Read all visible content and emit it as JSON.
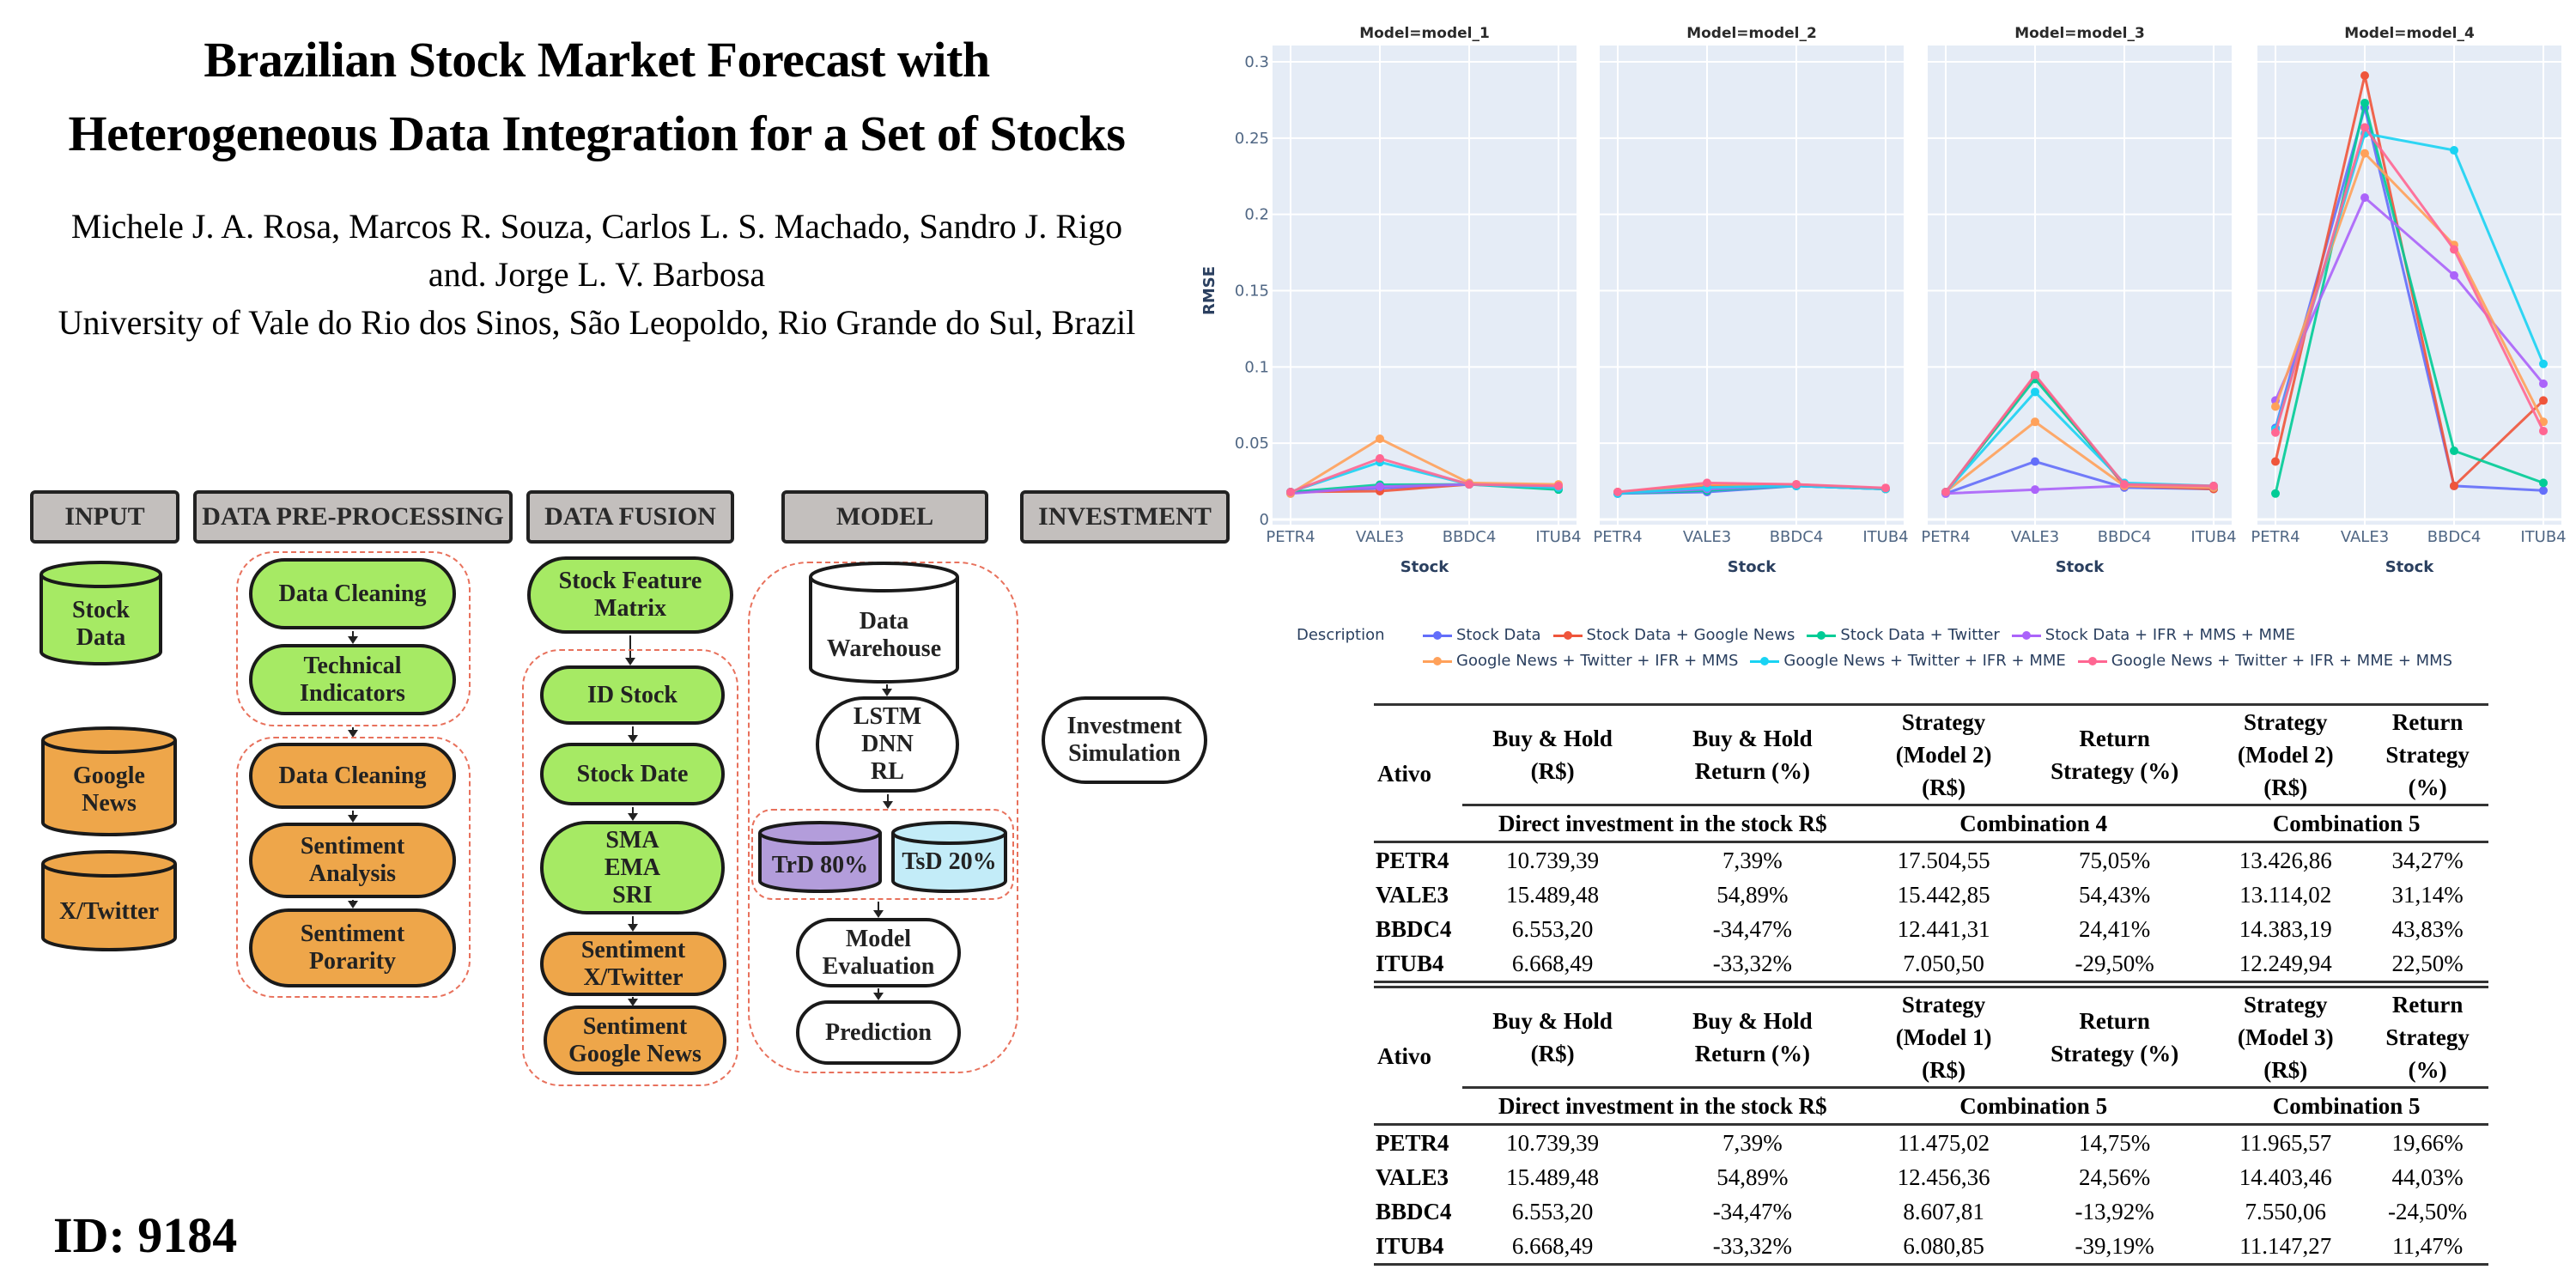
{
  "paper": {
    "title_line1": "Brazilian Stock Market Forecast with",
    "title_line2": "Heterogeneous Data Integration for a Set of Stocks",
    "authors_line1": "Michele J. A. Rosa, Marcos R. Souza, Carlos L. S. Machado, Sandro J. Rigo",
    "authors_line2": "and. Jorge L. V. Barbosa",
    "affiliation": "University of Vale do Rio dos Sinos, São Leopoldo, Rio Grande do Sul, Brazil",
    "id_label": "ID: 9184"
  },
  "diagram": {
    "headers": {
      "input": "INPUT",
      "preprocessing": "DATA PRE-PROCESSING",
      "fusion": "DATA FUSION",
      "model": "MODEL",
      "investment": "INVESTMENT"
    },
    "inputs": {
      "stock_data": [
        "Stock",
        "Data"
      ],
      "google_news": [
        "Google",
        "News"
      ],
      "twitter": [
        "X/Twitter"
      ]
    },
    "preprocessing": {
      "stock_steps": [
        "Data Cleaning",
        "Technical\nIndicators"
      ],
      "text_steps": [
        "Data Cleaning",
        "Sentiment\nAnalysis",
        "Sentiment\nPorarity"
      ]
    },
    "fusion": {
      "matrix": "Stock Feature\nMatrix",
      "steps": [
        "ID Stock",
        "Stock Date",
        "SMA\nEMA\nSRI",
        "Sentiment\nX/Twitter",
        "Sentiment\nGoogle News"
      ]
    },
    "model": {
      "warehouse": [
        "Data",
        "Warehouse"
      ],
      "algorithms": "LSTM\nDNN\nRL",
      "train": "TrD 80%",
      "test": "TsD 20%",
      "evaluation": "Model\nEvaluation",
      "prediction": "Prediction"
    },
    "investment": {
      "simulation": "Investment\nSimulation"
    },
    "colors": {
      "green": "#a6ea64",
      "orange": "#eea64a",
      "header": "#c3bfbd",
      "train": "#b39ddb",
      "test": "#c3ecf8",
      "dashed": "#e8715c"
    }
  },
  "chart_data": {
    "type": "line",
    "facet_label": "Model",
    "panels": [
      "Model=model_1",
      "Model=model_2",
      "Model=model_3",
      "Model=model_4"
    ],
    "categories": [
      "PETR4",
      "VALE3",
      "BBDC4",
      "ITUB4"
    ],
    "xlabel": "Stock",
    "ylabel": "RMSE",
    "ylim": [
      0,
      0.3
    ],
    "yticks": [
      0,
      0.05,
      0.1,
      0.15,
      0.2,
      0.25,
      0.3
    ],
    "ytick_labels": [
      "0",
      "0.05",
      "0.1",
      "0.15",
      "0.2",
      "0.25",
      "0.3"
    ],
    "grid": true,
    "legend_title": "Description",
    "legend_position": "bottom",
    "series": [
      {
        "name": "Stock Data",
        "color": "#636efa",
        "panels": [
          [
            0.018,
            0.0205,
            0.023,
            0.021
          ],
          [
            0.017,
            0.018,
            0.022,
            0.02
          ],
          [
            0.017,
            0.038,
            0.021,
            0.02
          ],
          [
            0.06,
            0.27,
            0.022,
            0.019
          ]
        ]
      },
      {
        "name": "Stock Data + Google News",
        "color": "#ef553b",
        "panels": [
          [
            0.018,
            0.0186,
            0.023,
            0.021
          ],
          [
            0.018,
            0.022,
            0.023,
            0.02
          ],
          [
            0.018,
            0.094,
            0.022,
            0.02
          ],
          [
            0.038,
            0.291,
            0.022,
            0.078
          ]
        ]
      },
      {
        "name": "Stock Data + Twitter",
        "color": "#00cc96",
        "panels": [
          [
            0.018,
            0.0228,
            0.023,
            0.0196
          ],
          [
            0.017,
            0.019,
            0.022,
            0.02
          ],
          [
            0.018,
            0.092,
            0.023,
            0.021
          ],
          [
            0.017,
            0.273,
            0.045,
            0.024
          ]
        ]
      },
      {
        "name": "Stock Data + IFR + MMS + MME",
        "color": "#ab63fa",
        "panels": [
          [
            0.017,
            0.0215,
            0.023,
            0.021
          ],
          [
            0.017,
            0.02,
            0.022,
            0.02
          ],
          [
            0.017,
            0.0196,
            0.022,
            0.021
          ],
          [
            0.078,
            0.211,
            0.16,
            0.089
          ]
        ]
      },
      {
        "name": "Google News + Twitter + IFR + MMS",
        "color": "#ffa15a",
        "panels": [
          [
            0.017,
            0.0529,
            0.024,
            0.023
          ],
          [
            0.018,
            0.023,
            0.023,
            0.02
          ],
          [
            0.018,
            0.064,
            0.022,
            0.021
          ],
          [
            0.074,
            0.24,
            0.18,
            0.064
          ]
        ]
      },
      {
        "name": "Google News + Twitter + IFR + MME",
        "color": "#19d3f3",
        "panels": [
          [
            0.018,
            0.0376,
            0.023,
            0.021
          ],
          [
            0.017,
            0.021,
            0.022,
            0.02
          ],
          [
            0.018,
            0.0836,
            0.024,
            0.022
          ],
          [
            0.059,
            0.253,
            0.242,
            0.102
          ]
        ]
      },
      {
        "name": "Google News + Twitter + IFR + MME + MMS",
        "color": "#ff6692",
        "panels": [
          [
            0.018,
            0.04,
            0.023,
            0.022
          ],
          [
            0.018,
            0.024,
            0.023,
            0.0207
          ],
          [
            0.018,
            0.0948,
            0.023,
            0.022
          ],
          [
            0.057,
            0.257,
            0.177,
            0.058
          ]
        ]
      }
    ]
  },
  "tables": [
    {
      "headers": [
        "Ativo",
        "Buy & Hold\n(R$)",
        "Buy & Hold\nReturn (%)",
        "Strategy\n(Model 2)\n(R$)",
        "Return\nStrategy (%)",
        "Strategy\n(Model 2)\n(R$)",
        "Return\nStrategy\n(%)"
      ],
      "groups": [
        "Direct investment in the stock R$",
        "Combination 4",
        "Combination 5"
      ],
      "rows": [
        [
          "PETR4",
          "10.739,39",
          "7,39%",
          "17.504,55",
          "75,05%",
          "13.426,86",
          "34,27%"
        ],
        [
          "VALE3",
          "15.489,48",
          "54,89%",
          "15.442,85",
          "54,43%",
          "13.114,02",
          "31,14%"
        ],
        [
          "BBDC4",
          "6.553,20",
          "-34,47%",
          "12.441,31",
          "24,41%",
          "14.383,19",
          "43,83%"
        ],
        [
          "ITUB4",
          "6.668,49",
          "-33,32%",
          "7.050,50",
          "-29,50%",
          "12.249,94",
          "22,50%"
        ]
      ]
    },
    {
      "headers": [
        "Ativo",
        "Buy & Hold\n(R$)",
        "Buy & Hold\nReturn (%)",
        "Strategy\n(Model 1)\n(R$)",
        "Return\nStrategy (%)",
        "Strategy\n(Model 3)\n(R$)",
        "Return\nStrategy\n(%)"
      ],
      "groups": [
        "Direct investment in the stock R$",
        "Combination 5",
        "Combination 5"
      ],
      "rows": [
        [
          "PETR4",
          "10.739,39",
          "7,39%",
          "11.475,02",
          "14,75%",
          "11.965,57",
          "19,66%"
        ],
        [
          "VALE3",
          "15.489,48",
          "54,89%",
          "12.456,36",
          "24,56%",
          "14.403,46",
          "44,03%"
        ],
        [
          "BBDC4",
          "6.553,20",
          "-34,47%",
          "8.607,81",
          "-13,92%",
          "7.550,06",
          "-24,50%"
        ],
        [
          "ITUB4",
          "6.668,49",
          "-33,32%",
          "6.080,85",
          "-39,19%",
          "11.147,27",
          "11,47%"
        ]
      ]
    }
  ]
}
